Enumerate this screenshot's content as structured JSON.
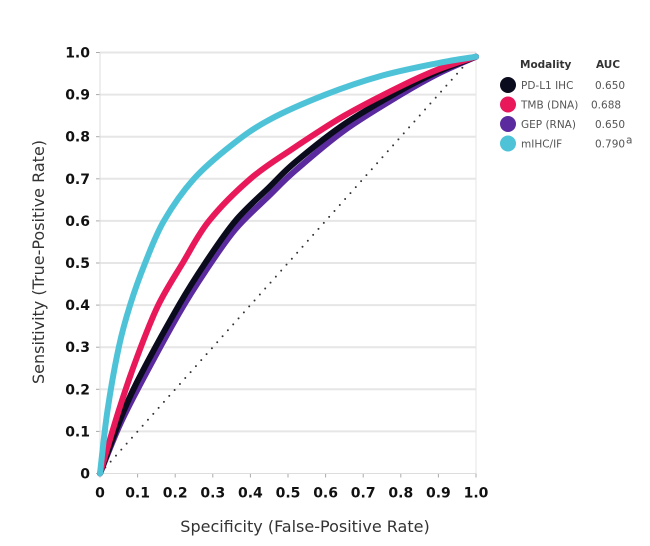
{
  "chart_data": {
    "type": "line",
    "title": "",
    "xlabel": "Specificity (False-Positive Rate)",
    "ylabel": "Sensitivity (True-Positive Rate)",
    "xlim": [
      0,
      1
    ],
    "ylim": [
      0,
      1
    ],
    "xticks": [
      "0",
      "0.1",
      "0.2",
      "0.3",
      "0.4",
      "0.5",
      "0.6",
      "0.7",
      "0.8",
      "0.9",
      "1.0"
    ],
    "yticks": [
      "0",
      "0.1",
      "0.2",
      "0.3",
      "0.4",
      "0.5",
      "0.6",
      "0.7",
      "0.8",
      "0.9",
      "1.0"
    ],
    "grid": "horizontal",
    "legend": {
      "placement": "top-right",
      "header_modality": "Modality",
      "header_auc": "AUC"
    },
    "series": [
      {
        "name": "PD-L1 IHC",
        "auc": "0.650",
        "color": "#0b0b1e",
        "x": [
          0,
          0.05,
          0.1,
          0.21,
          0.28,
          0.36,
          0.45,
          0.52,
          0.65,
          0.8,
          0.9,
          1
        ],
        "y": [
          0,
          0.12,
          0.22,
          0.4,
          0.5,
          0.6,
          0.68,
          0.74,
          0.83,
          0.91,
          0.955,
          0.99
        ]
      },
      {
        "name": "TMB (DNA)",
        "auc": "0.688",
        "color": "#e8185a",
        "x": [
          0,
          0.05,
          0.1,
          0.155,
          0.22,
          0.29,
          0.4,
          0.51,
          0.65,
          0.8,
          0.9,
          1
        ],
        "y": [
          0,
          0.15,
          0.28,
          0.4,
          0.5,
          0.6,
          0.7,
          0.77,
          0.85,
          0.92,
          0.96,
          0.99
        ]
      },
      {
        "name": "GEP (RNA)",
        "auc": "0.650",
        "color": "#5b2a9e",
        "x": [
          0,
          0.05,
          0.1,
          0.21,
          0.28,
          0.36,
          0.45,
          0.52,
          0.65,
          0.8,
          0.9,
          1
        ],
        "y": [
          0,
          0.11,
          0.2,
          0.38,
          0.48,
          0.58,
          0.66,
          0.72,
          0.815,
          0.9,
          0.95,
          0.99
        ]
      },
      {
        "name": "mIHC/IF",
        "auc": "0.790",
        "auc_superscript": "a",
        "color": "#4ec3d8",
        "x": [
          0,
          0.02,
          0.05,
          0.08,
          0.12,
          0.17,
          0.25,
          0.35,
          0.45,
          0.6,
          0.75,
          0.9,
          1
        ],
        "y": [
          0,
          0.15,
          0.3,
          0.4,
          0.5,
          0.6,
          0.7,
          0.78,
          0.84,
          0.9,
          0.945,
          0.975,
          0.99
        ]
      }
    ],
    "reference_line": {
      "x": [
        0,
        1
      ],
      "y": [
        0,
        1
      ],
      "style": "dotted"
    }
  }
}
